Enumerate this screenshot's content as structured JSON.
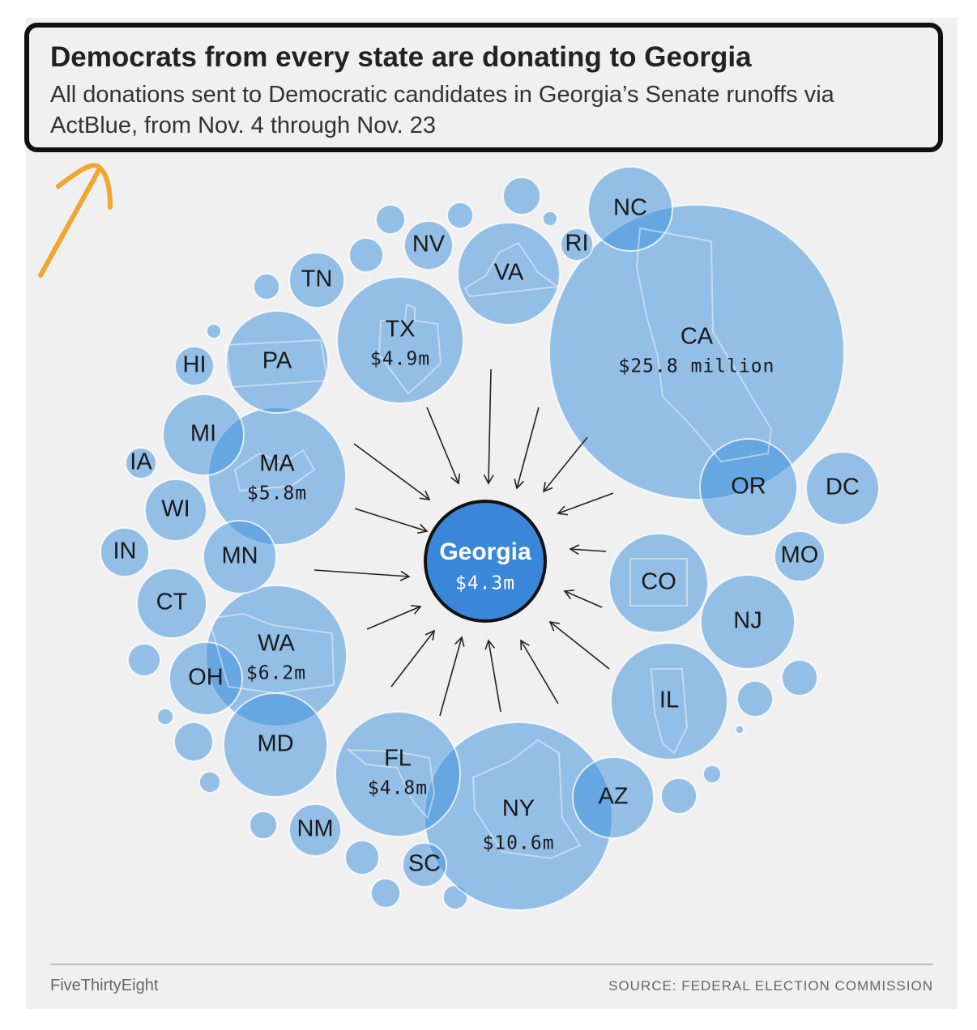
{
  "header": {
    "title": "Democrats from every state are donating to Georgia",
    "subtitle": "All donations sent to Democratic candidates in Georgia’s Senate runoffs via ActBlue, from Nov. 4 through Nov. 23"
  },
  "footer": {
    "brand": "FiveThirtyEight",
    "source": "SOURCE: FEDERAL ELECTION COMMISSION"
  },
  "colors": {
    "bubble": "#3e8fdc",
    "georgia_fill": "#3a86d8",
    "georgia_stroke": "#111111",
    "annotation_arrow": "#f2a531"
  },
  "chart_data": {
    "type": "bubble",
    "target": {
      "state": "Georgia",
      "value_label": "$4.3m",
      "value_millions": 4.3
    },
    "sources": [
      {
        "state": "CA",
        "value_label": "$25.8 million",
        "value_millions": 25.8
      },
      {
        "state": "NY",
        "value_label": "$10.6m",
        "value_millions": 10.6
      },
      {
        "state": "WA",
        "value_label": "$6.2m",
        "value_millions": 6.2
      },
      {
        "state": "MA",
        "value_label": "$5.8m",
        "value_millions": 5.8
      },
      {
        "state": "TX",
        "value_label": "$4.9m",
        "value_millions": 4.9
      },
      {
        "state": "FL",
        "value_label": "$4.8m",
        "value_millions": 4.8
      },
      {
        "state": "IL"
      },
      {
        "state": "VA"
      },
      {
        "state": "PA"
      },
      {
        "state": "MD"
      },
      {
        "state": "CO"
      },
      {
        "state": "NJ"
      },
      {
        "state": "NC"
      },
      {
        "state": "OR"
      },
      {
        "state": "MN"
      },
      {
        "state": "DC"
      },
      {
        "state": "MI"
      },
      {
        "state": "AZ"
      },
      {
        "state": "OH"
      },
      {
        "state": "CT"
      },
      {
        "state": "TN"
      },
      {
        "state": "WI"
      },
      {
        "state": "MO"
      },
      {
        "state": "NV"
      },
      {
        "state": "NM"
      },
      {
        "state": "IN"
      },
      {
        "state": "SC"
      },
      {
        "state": "HI"
      },
      {
        "state": "IA"
      },
      {
        "state": "RI"
      }
    ]
  }
}
